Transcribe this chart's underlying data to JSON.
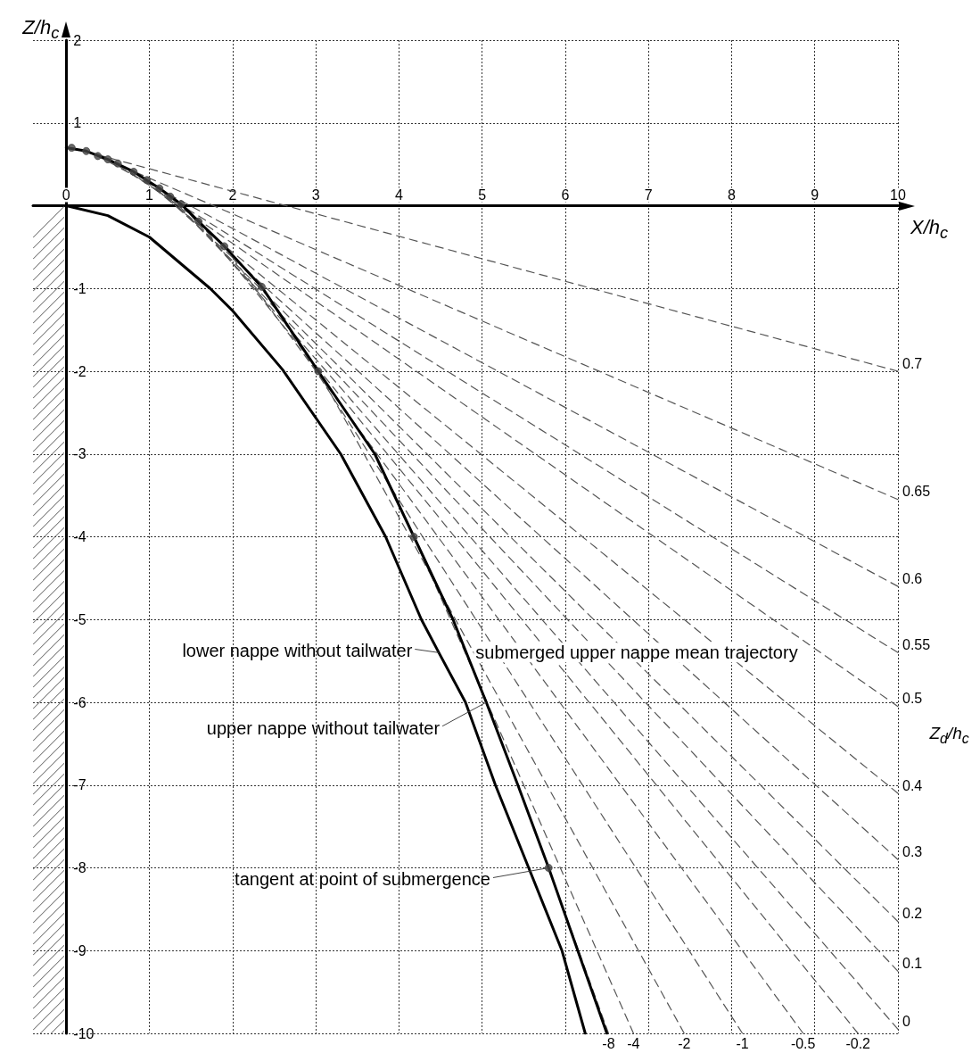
{
  "chart_data": {
    "type": "line",
    "xlabel": "X/h$_{c}$",
    "ylabel": "Z/h$_{c}$",
    "xlim": [
      -0.4,
      10
    ],
    "ylim": [
      -10,
      2
    ],
    "xticks": [
      0,
      1,
      2,
      3,
      4,
      5,
      6,
      7,
      8,
      9,
      10
    ],
    "yticks": [
      -10,
      -9,
      -8,
      -7,
      -6,
      -5,
      -4,
      -3,
      -2,
      -1,
      {
        "value": 0,
        "label": null
      },
      1,
      2
    ],
    "grid": true,
    "series": [
      {
        "type": "line",
        "color": "#555555",
        "line_style": "dashed",
        "marker": "none",
        "x": [
          0.065,
          10
        ],
        "values": [
          0.7,
          -2.0
        ]
      },
      {
        "type": "line",
        "color": "#555555",
        "line_style": "dashed",
        "marker": "none",
        "x": [
          0.24,
          10
        ],
        "values": [
          0.66,
          -3.55
        ]
      },
      {
        "type": "line",
        "color": "#555555",
        "line_style": "dashed",
        "marker": "none",
        "x": [
          0.38,
          10
        ],
        "values": [
          0.6,
          -4.6
        ]
      },
      {
        "type": "line",
        "color": "#555555",
        "line_style": "dashed",
        "marker": "none",
        "x": [
          0.5,
          10
        ],
        "values": [
          0.56,
          -5.4
        ]
      },
      {
        "type": "line",
        "color": "#555555",
        "line_style": "dashed",
        "marker": "none",
        "x": [
          0.62,
          10
        ],
        "values": [
          0.51,
          -6.05
        ]
      },
      {
        "type": "line",
        "color": "#555555",
        "line_style": "dashed",
        "marker": "none",
        "x": [
          0.81,
          10
        ],
        "values": [
          0.41,
          -7.1
        ]
      },
      {
        "type": "line",
        "color": "#555555",
        "line_style": "dashed",
        "marker": "none",
        "x": [
          0.97,
          10
        ],
        "values": [
          0.31,
          -7.9
        ]
      },
      {
        "type": "line",
        "color": "#555555",
        "line_style": "dashed",
        "marker": "none",
        "x": [
          1.12,
          10
        ],
        "values": [
          0.21,
          -8.65
        ]
      },
      {
        "type": "line",
        "color": "#555555",
        "line_style": "dashed",
        "marker": "none",
        "x": [
          1.25,
          10
        ],
        "values": [
          0.11,
          -9.25
        ]
      },
      {
        "type": "line",
        "color": "#555555",
        "line_style": "dashed",
        "marker": "none",
        "x": [
          1.38,
          10
        ],
        "values": [
          0.02,
          -9.95
        ]
      },
      {
        "type": "line",
        "color": "#555555",
        "line_style": "dashed",
        "marker": "none",
        "x": [
          1.59,
          9.52
        ],
        "values": [
          -0.19,
          -10
        ]
      },
      {
        "type": "line",
        "color": "#555555",
        "line_style": "dashed",
        "marker": "none",
        "x": [
          1.9,
          8.86
        ],
        "values": [
          -0.49,
          -10
        ]
      },
      {
        "type": "line",
        "color": "#555555",
        "line_style": "dashed",
        "marker": "none",
        "x": [
          2.35,
          8.13
        ],
        "values": [
          -0.98,
          -10
        ]
      },
      {
        "type": "line",
        "color": "#555555",
        "line_style": "dashed",
        "marker": "none",
        "x": [
          3.03,
          7.43
        ],
        "values": [
          -2,
          -10
        ]
      },
      {
        "type": "line",
        "color": "#555555",
        "line_style": "dashed",
        "marker": "none",
        "x": [
          4.18,
          6.82
        ],
        "values": [
          -4,
          -10
        ]
      },
      {
        "type": "line",
        "color": "#555555",
        "line_style": "dashed",
        "marker": "none",
        "x": [
          5.8,
          6.52
        ],
        "values": [
          -8,
          -10
        ]
      },
      {
        "color": "#000000",
        "line_style": "solid",
        "marker": "none",
        "x": [
          0,
          0.5,
          1,
          1.73,
          2,
          2.6,
          3.3,
          3.84,
          4.27,
          4.48,
          4.8,
          5.16,
          5.56,
          5.96,
          6.24
        ],
        "values": [
          0,
          -0.12,
          -0.38,
          -1,
          -1.27,
          -1.98,
          -3,
          -4,
          -5,
          -5.4,
          -6,
          -7,
          -8,
          -9,
          -10
        ]
      },
      {
        "color": "#000000",
        "line_style": "solid",
        "marker": "none",
        "x": [
          0,
          0.24,
          0.5,
          0.81,
          1.12,
          1.38,
          1.59,
          1.9,
          2.35,
          3.03,
          3.71,
          4.18,
          4.65,
          5.05,
          5.43,
          5.8,
          6.15,
          6.5
        ],
        "values": [
          0.7,
          0.66,
          0.56,
          0.41,
          0.21,
          0.02,
          -0.19,
          -0.49,
          -0.98,
          -2,
          -3,
          -4,
          -5,
          -6,
          -7,
          -8,
          -9,
          -10
        ]
      },
      {
        "type": "scatter",
        "color": "#444444",
        "marker": "circle",
        "x": [
          0.065,
          0.24,
          0.38,
          0.5,
          0.62,
          0.81,
          0.97,
          1.12,
          1.25,
          1.38,
          1.59,
          1.9,
          2.35,
          3.03,
          4.18,
          5.8
        ],
        "values": [
          0.7,
          0.66,
          0.6,
          0.56,
          0.51,
          0.41,
          0.31,
          0.21,
          0.11,
          0.02,
          -0.19,
          -0.49,
          -0.98,
          -2,
          -4,
          -8
        ]
      }
    ],
    "annotations": [
      {
        "text": "lower nappe without tailwater",
        "x": 4.48,
        "y": -5.4
      },
      {
        "text": "upper nappe without tailwater",
        "x": 5.05,
        "y": -6
      },
      {
        "text": "tangent at point of submergence",
        "x": 5.8,
        "y": -8
      },
      "submerged upper nappe mean trajectory",
      "Z$_{d}$/h$_{c}$",
      {
        "text": "0.7",
        "x": 10,
        "y": -2.0
      },
      {
        "text": "0.65",
        "x": 10,
        "y": -3.55
      },
      {
        "text": "0.6",
        "x": 10,
        "y": -4.6
      },
      {
        "text": "0.55",
        "x": 10,
        "y": -5.4
      },
      {
        "text": "0.5",
        "x": 10,
        "y": -6.05
      },
      {
        "text": "0.4",
        "x": 10,
        "y": -7.1
      },
      {
        "text": "0.3",
        "x": 10,
        "y": -7.9
      },
      {
        "text": "0.2",
        "x": 10,
        "y": -8.65
      },
      {
        "text": "0.1",
        "x": 10,
        "y": -9.25
      },
      {
        "text": "0",
        "x": 10,
        "y": -9.95
      },
      {
        "text": "-8",
        "x": 6.52,
        "y": -10
      },
      {
        "text": "-4",
        "x": 6.82,
        "y": -10
      },
      {
        "text": "-2",
        "x": 7.43,
        "y": -10
      },
      {
        "text": "-1",
        "x": 8.13,
        "y": -10
      },
      {
        "text": "-0.5",
        "x": 8.86,
        "y": -10
      },
      {
        "text": "-0.2",
        "x": 9.52,
        "y": -10
      }
    ]
  }
}
